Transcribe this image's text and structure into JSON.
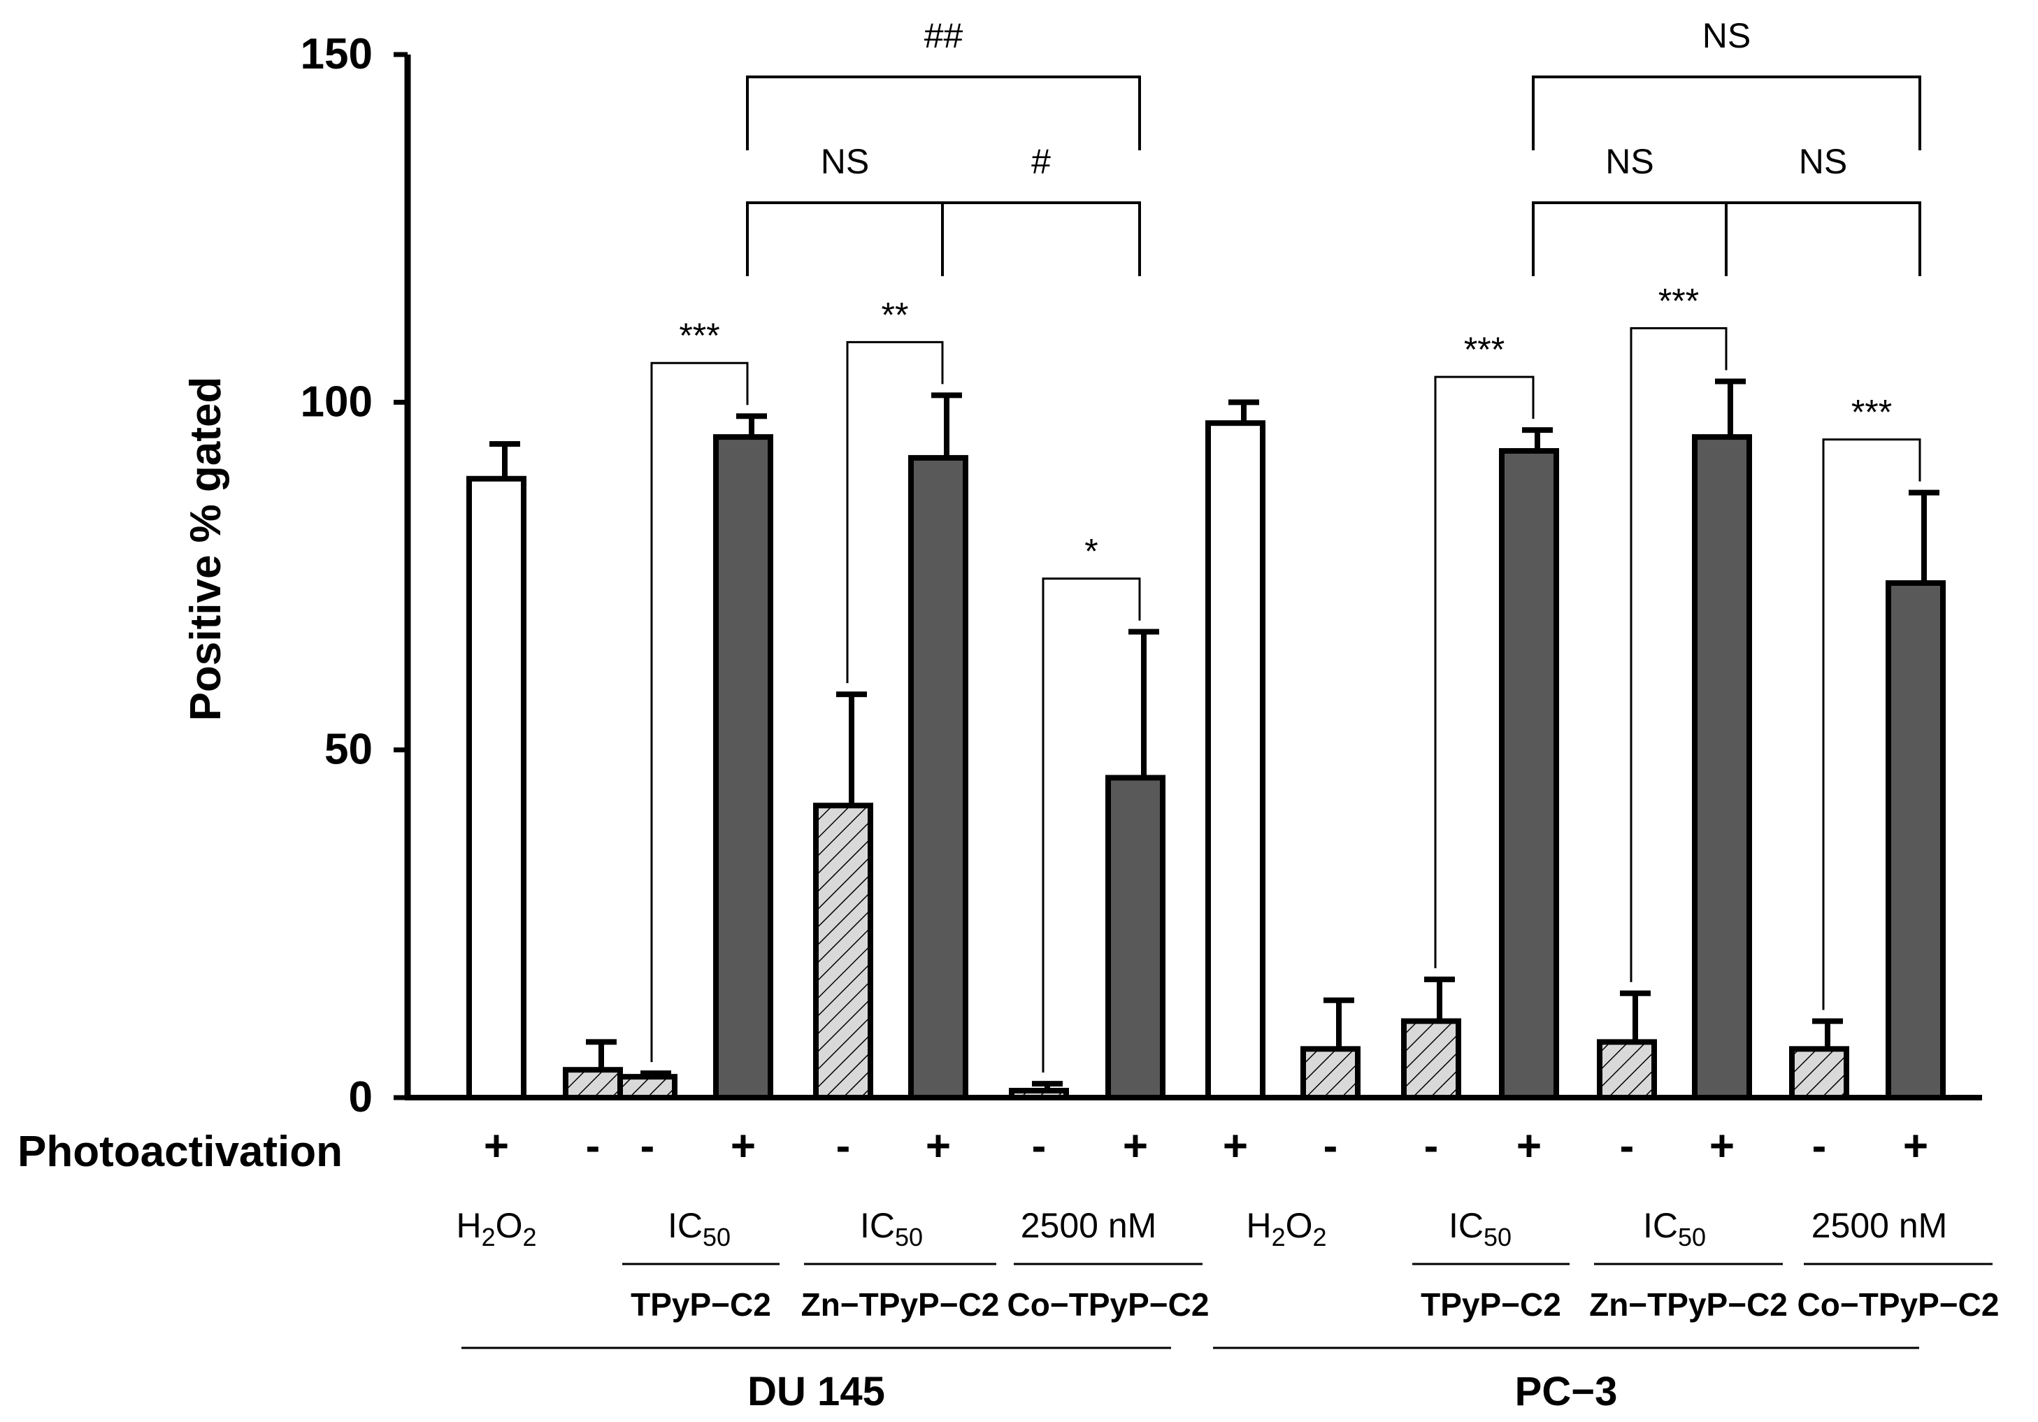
{
  "chart_data": {
    "type": "bar",
    "title": "",
    "xlabel": "",
    "ylabel": "Positive % gated",
    "ylim": [
      0,
      150
    ],
    "yticks": [
      0,
      50,
      100,
      150
    ],
    "row_label": "Photoactivation",
    "bars": [
      {
        "group": "DU 145",
        "condition": "H2O2",
        "compound": "",
        "photo": "+",
        "value": 89,
        "error": 5,
        "style": "white"
      },
      {
        "group": "DU 145",
        "condition": "",
        "compound": "",
        "photo": "-",
        "value": 4,
        "error": 4,
        "style": "hatched"
      },
      {
        "group": "DU 145",
        "condition": "IC50",
        "compound": "TPyP-C2",
        "photo": "-",
        "value": 3,
        "error": 0.5,
        "style": "hatched"
      },
      {
        "group": "DU 145",
        "condition": "IC50",
        "compound": "TPyP-C2",
        "photo": "+",
        "value": 95,
        "error": 3,
        "style": "dark"
      },
      {
        "group": "DU 145",
        "condition": "IC50",
        "compound": "Zn-TPyP-C2",
        "photo": "-",
        "value": 42,
        "error": 16,
        "style": "hatched"
      },
      {
        "group": "DU 145",
        "condition": "IC50",
        "compound": "Zn-TPyP-C2",
        "photo": "+",
        "value": 92,
        "error": 9,
        "style": "dark"
      },
      {
        "group": "DU 145",
        "condition": "2500 nM",
        "compound": "Co-TPyP-C2",
        "photo": "-",
        "value": 1,
        "error": 1,
        "style": "hatched"
      },
      {
        "group": "DU 145",
        "condition": "2500 nM",
        "compound": "Co-TPyP-C2",
        "photo": "+",
        "value": 46,
        "error": 21,
        "style": "dark"
      },
      {
        "group": "PC-3",
        "condition": "H2O2",
        "compound": "",
        "photo": "+",
        "value": 97,
        "error": 3,
        "style": "white"
      },
      {
        "group": "PC-3",
        "condition": "",
        "compound": "",
        "photo": "-",
        "value": 7,
        "error": 7,
        "style": "hatched"
      },
      {
        "group": "PC-3",
        "condition": "IC50",
        "compound": "TPyP-C2",
        "photo": "-",
        "value": 11,
        "error": 6,
        "style": "hatched"
      },
      {
        "group": "PC-3",
        "condition": "IC50",
        "compound": "TPyP-C2",
        "photo": "+",
        "value": 93,
        "error": 3,
        "style": "dark"
      },
      {
        "group": "PC-3",
        "condition": "IC50",
        "compound": "Zn-TPyP-C2",
        "photo": "-",
        "value": 8,
        "error": 7,
        "style": "hatched"
      },
      {
        "group": "PC-3",
        "condition": "IC50",
        "compound": "Zn-TPyP-C2",
        "photo": "+",
        "value": 95,
        "error": 8,
        "style": "dark"
      },
      {
        "group": "PC-3",
        "condition": "2500 nM",
        "compound": "Co-TPyP-C2",
        "photo": "-",
        "value": 7,
        "error": 4,
        "style": "hatched"
      },
      {
        "group": "PC-3",
        "condition": "2500 nM",
        "compound": "Co-TPyP-C2",
        "photo": "+",
        "value": 74,
        "error": 13,
        "style": "dark"
      }
    ],
    "condition_labels": [
      {
        "base": "H",
        "sub1": "2",
        "mid": "O",
        "sub2": "2",
        "text": "H2O2"
      },
      {
        "base": "IC",
        "sub1": "50",
        "text": "IC50"
      },
      {
        "base": "IC",
        "sub1": "50",
        "text": "IC50"
      },
      {
        "base": "2500 nM",
        "text": "2500 nM"
      },
      {
        "base": "H",
        "sub1": "2",
        "mid": "O",
        "sub2": "2",
        "text": "H2O2"
      },
      {
        "base": "IC",
        "sub1": "50",
        "text": "IC50"
      },
      {
        "base": "IC",
        "sub1": "50",
        "text": "IC50"
      },
      {
        "base": "2500 nM",
        "text": "2500 nM"
      }
    ],
    "compound_labels": [
      "TPyP−C2",
      "Zn−TPyP−C2",
      "Co−TPyP−C2",
      "TPyP−C2",
      "Zn−TPyP−C2",
      "Co−TPyP−C2"
    ],
    "cell_lines": [
      "DU 145",
      "PC−3"
    ],
    "significance": [
      {
        "from": 2,
        "to": 3,
        "label": "***"
      },
      {
        "from": 4,
        "to": 5,
        "label": "**"
      },
      {
        "from": 6,
        "to": 7,
        "label": "*"
      },
      {
        "from": 10,
        "to": 11,
        "label": "***"
      },
      {
        "from": 12,
        "to": 13,
        "label": "***"
      },
      {
        "from": 14,
        "to": 15,
        "label": "***"
      },
      {
        "from": 3,
        "to": 5,
        "label": "NS"
      },
      {
        "from": 5,
        "to": 7,
        "label": "#"
      },
      {
        "from": 3,
        "to": 7,
        "label": "##"
      },
      {
        "from": 11,
        "to": 13,
        "label": "NS"
      },
      {
        "from": 13,
        "to": 15,
        "label": "NS"
      },
      {
        "from": 11,
        "to": 15,
        "label": "NS"
      }
    ],
    "colors": {
      "dark": "#595959",
      "hatch": "#d9d9d9",
      "white": "#ffffff",
      "line": "#000000"
    }
  }
}
